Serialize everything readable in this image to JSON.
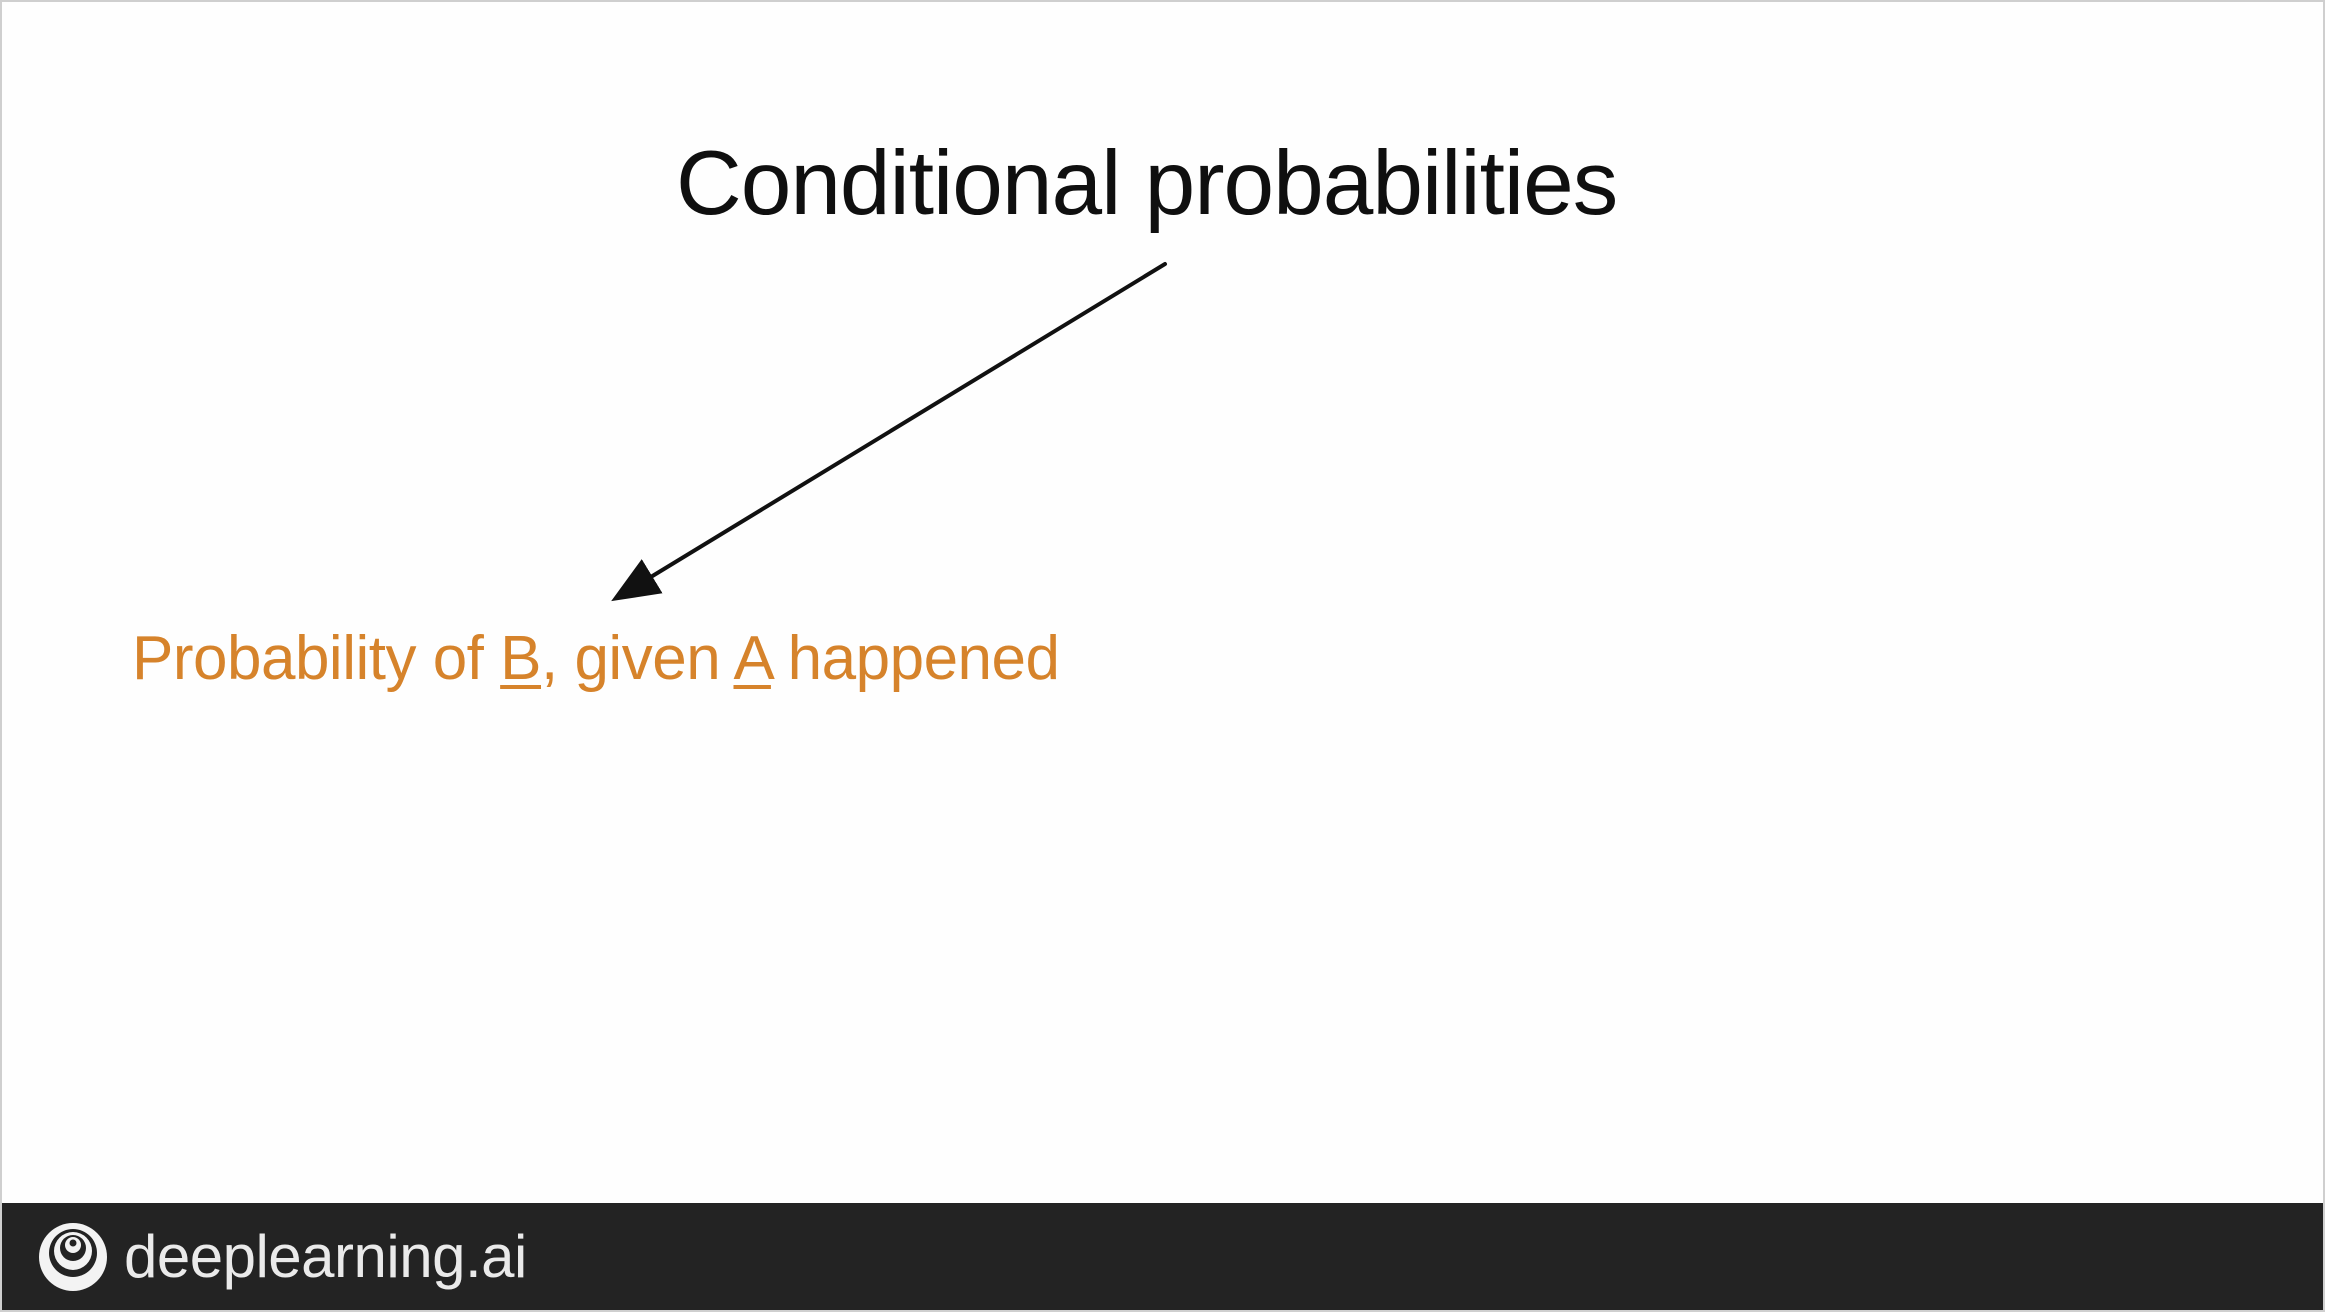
{
  "slide": {
    "title": "Conditional probabilities",
    "probability_line": {
      "before_b": "Probability of ",
      "b": "B",
      "between": ", given ",
      "a": "A",
      "after_a": " happened"
    }
  },
  "footer": {
    "brand": "deeplearning.ai",
    "logo_icon": "spiral-logo-icon"
  },
  "colors": {
    "title": "#0f0f0f",
    "accent": "#d6832b",
    "footer_bg": "#232323",
    "footer_text": "#eaeaea"
  }
}
